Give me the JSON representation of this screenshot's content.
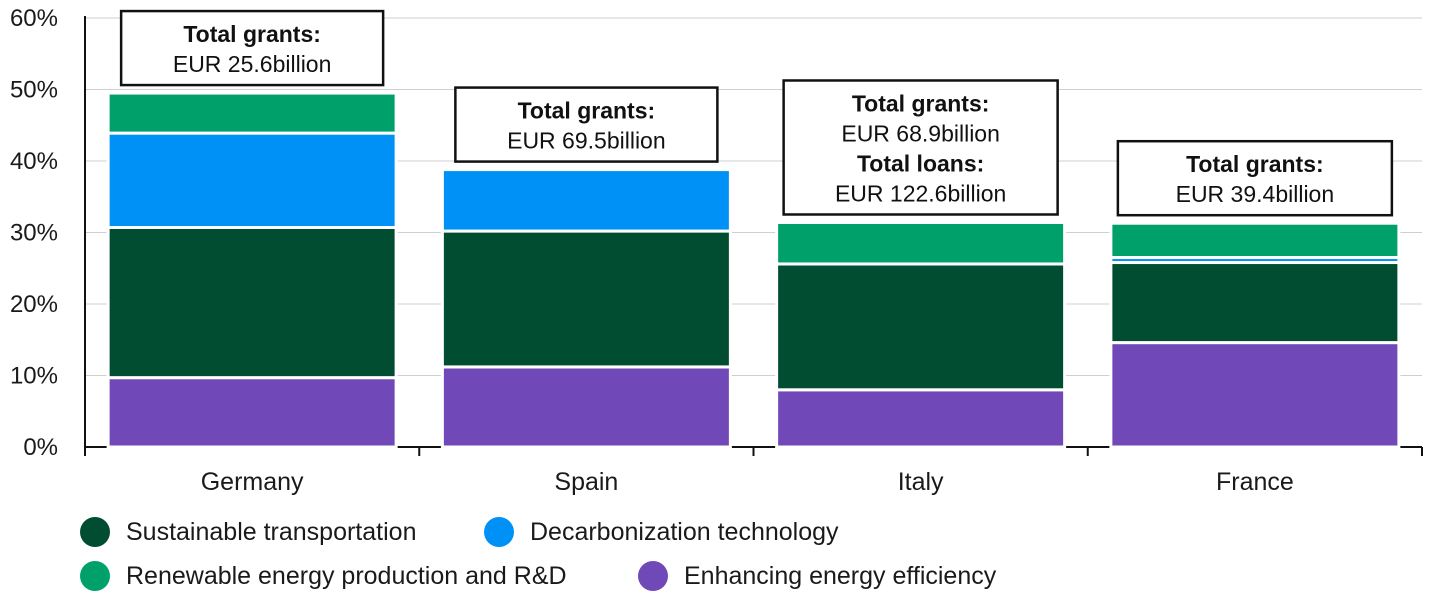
{
  "chart_data": {
    "type": "bar",
    "stacked": true,
    "categories": [
      "Germany",
      "Spain",
      "Italy",
      "France"
    ],
    "series": [
      {
        "name": "Enhancing energy efficiency",
        "color": "#7048b8",
        "values": [
          9.7,
          11.2,
          8.0,
          14.6
        ]
      },
      {
        "name": "Sustainable transportation",
        "color": "#004d32",
        "values": [
          21.0,
          19.0,
          17.6,
          11.2
        ]
      },
      {
        "name": "Decarbonization technology",
        "color": "#0091f7",
        "values": [
          13.2,
          8.6,
          0,
          0.7
        ]
      },
      {
        "name": "Renewable energy production and R&D",
        "color": "#00a06a",
        "values": [
          5.6,
          0,
          5.8,
          4.8
        ]
      }
    ],
    "annotations": [
      [
        "Total grants:",
        "EUR 25.6billion"
      ],
      [
        "Total grants:",
        "EUR 69.5billion"
      ],
      [
        "Total grants:",
        "EUR 68.9billion",
        "Total loans:",
        "EUR 122.6billion"
      ],
      [
        "Total grants:",
        "EUR 39.4billion"
      ]
    ],
    "yticks": [
      "0%",
      "10%",
      "20%",
      "30%",
      "40%",
      "50%",
      "60%"
    ],
    "ylim": [
      0,
      60
    ],
    "grid": true,
    "legend_position": "bottom",
    "legend_order": [
      "Sustainable transportation",
      "Decarbonization technology",
      "Renewable energy production and R&D",
      "Enhancing energy efficiency"
    ]
  }
}
